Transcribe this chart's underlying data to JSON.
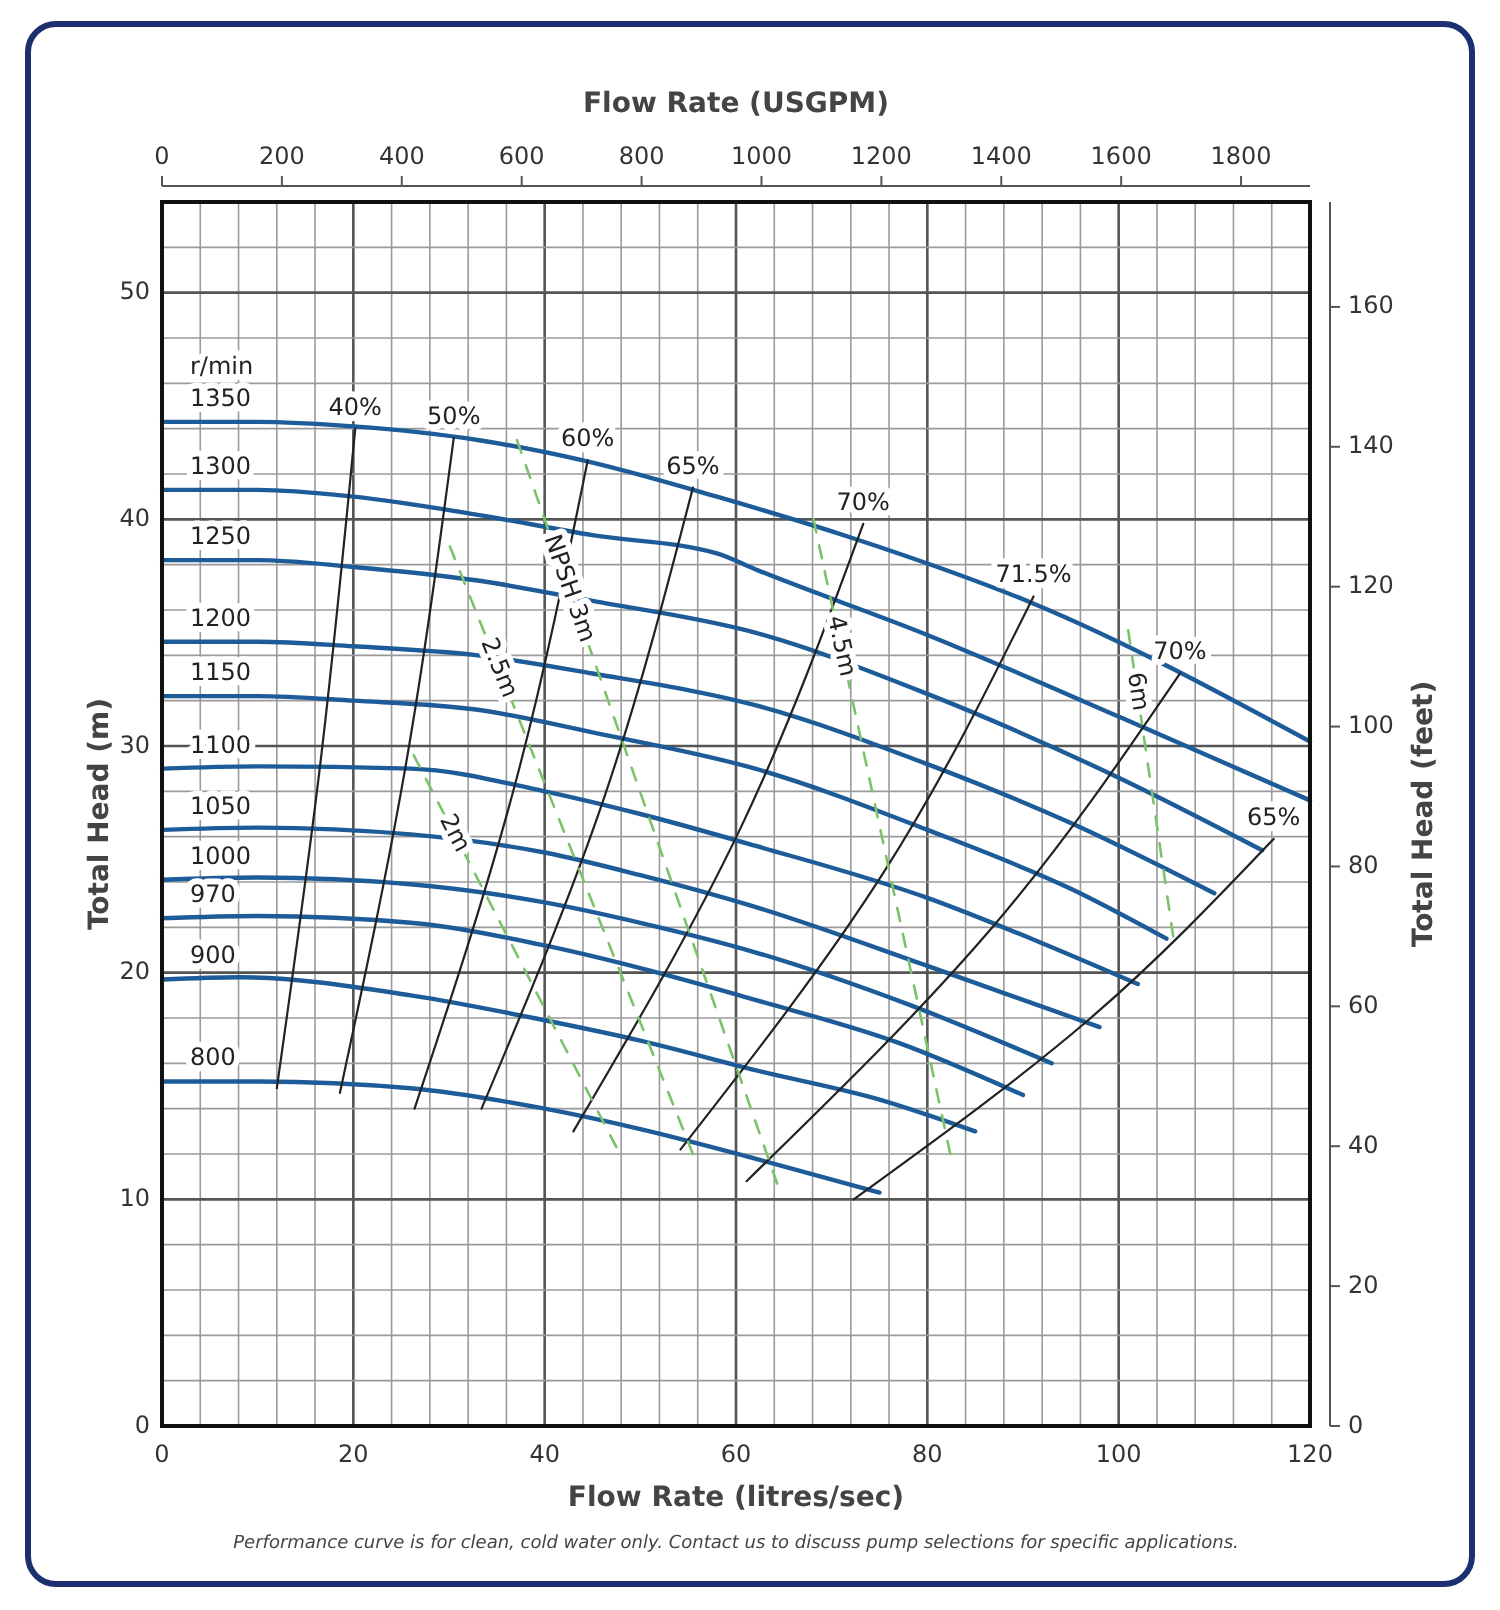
{
  "chart_data": {
    "type": "line",
    "xlabel": "Flow Rate (litres/sec)",
    "x2label": "Flow Rate (USGPM)",
    "ylabel": "Total Head (m)",
    "y2label": "Total Head (feet)",
    "xlim": [
      0,
      120
    ],
    "xticks": [
      0,
      20,
      40,
      60,
      80,
      100,
      120
    ],
    "x2lim": [
      0,
      1915
    ],
    "x2ticks": [
      0,
      200,
      400,
      600,
      800,
      1000,
      1200,
      1400,
      1600,
      1800
    ],
    "ylim": [
      0,
      54
    ],
    "yticks": [
      0,
      10,
      20,
      30,
      40,
      50
    ],
    "y2lim": [
      0,
      175
    ],
    "y2ticks": [
      0,
      20,
      40,
      60,
      80,
      100,
      120,
      140,
      160
    ],
    "grid": true,
    "series": [
      {
        "name": "1350",
        "color": "#1d5c99",
        "x": [
          0,
          10,
          20,
          33,
          44,
          58,
          72,
          91,
          120
        ],
        "values": [
          44.3,
          44.3,
          44.1,
          43.5,
          42.6,
          41.0,
          39.2,
          36.3,
          30.2
        ]
      },
      {
        "name": "1300",
        "color": "#1d5c99",
        "x": [
          0,
          10,
          20,
          33,
          45,
          58,
          62,
          80,
          100,
          120
        ],
        "values": [
          41.3,
          41.3,
          41.0,
          40.2,
          39.3,
          38.5,
          37.8,
          34.9,
          31.3,
          27.6
        ]
      },
      {
        "name": "1250",
        "color": "#1d5c99",
        "x": [
          0,
          10,
          20,
          33,
          45,
          62,
          80,
          100,
          115
        ],
        "values": [
          38.2,
          38.2,
          37.9,
          37.3,
          36.4,
          35.0,
          32.3,
          28.6,
          25.4
        ]
      },
      {
        "name": "1200",
        "color": "#1d5c99",
        "x": [
          0,
          10,
          20,
          33,
          45,
          62,
          80,
          95,
          110
        ],
        "values": [
          34.6,
          34.6,
          34.4,
          34.0,
          33.2,
          31.8,
          29.2,
          26.6,
          23.5
        ]
      },
      {
        "name": "1150",
        "color": "#1d5c99",
        "x": [
          0,
          10,
          20,
          33,
          45,
          62,
          80,
          95,
          105
        ],
        "values": [
          32.2,
          32.2,
          32.0,
          31.6,
          30.6,
          29.0,
          26.3,
          23.7,
          21.5
        ]
      },
      {
        "name": "1100",
        "color": "#1d5c99",
        "x": [
          0,
          10,
          26,
          40,
          50,
          62,
          80,
          92,
          102
        ],
        "values": [
          29.0,
          29.1,
          29.0,
          28.0,
          27.0,
          25.6,
          23.3,
          21.3,
          19.5
        ]
      },
      {
        "name": "1050",
        "color": "#1d5c99",
        "x": [
          0,
          10,
          26,
          40,
          50,
          62,
          80,
          98
        ],
        "values": [
          26.3,
          26.4,
          26.1,
          25.3,
          24.3,
          22.9,
          20.3,
          17.6
        ]
      },
      {
        "name": "1000",
        "color": "#1d5c99",
        "x": [
          0,
          10,
          26,
          40,
          50,
          62,
          78,
          93
        ],
        "values": [
          24.1,
          24.2,
          23.9,
          23.1,
          22.2,
          20.9,
          18.6,
          16.0
        ]
      },
      {
        "name": "970",
        "color": "#1d5c99",
        "x": [
          0,
          10,
          26,
          40,
          50,
          62,
          77,
          90
        ],
        "values": [
          22.4,
          22.5,
          22.2,
          21.2,
          20.2,
          18.8,
          16.9,
          14.6
        ]
      },
      {
        "name": "900",
        "color": "#1d5c99",
        "x": [
          0,
          8,
          26,
          40,
          50,
          62,
          75,
          85
        ],
        "values": [
          19.7,
          19.8,
          19.0,
          17.9,
          17.0,
          15.7,
          14.4,
          13.0
        ]
      },
      {
        "name": "800",
        "color": "#1d5c99",
        "x": [
          0,
          10,
          26,
          40,
          50,
          62,
          75
        ],
        "values": [
          15.2,
          15.2,
          14.9,
          14.0,
          13.1,
          11.8,
          10.3
        ]
      },
      {
        "name": "40%",
        "color": "#222222",
        "x": [
          12,
          16.6,
          20.2
        ],
        "values": [
          14.9,
          29.4,
          44.0
        ]
      },
      {
        "name": "50%",
        "color": "#222222",
        "x": [
          18.6,
          25.5,
          30.5
        ],
        "values": [
          14.7,
          29.2,
          43.6
        ]
      },
      {
        "name": "60%",
        "color": "#222222",
        "x": [
          26.4,
          36.9,
          44.5
        ],
        "values": [
          14.0,
          28.3,
          42.6
        ]
      },
      {
        "name": "65%",
        "color": "#222222",
        "x": [
          33.4,
          46.2,
          55.5
        ],
        "values": [
          14.0,
          27.7,
          41.4
        ]
      },
      {
        "name": "70%",
        "color": "#222222",
        "x": [
          43,
          60.5,
          73.3
        ],
        "values": [
          13.0,
          26.4,
          39.8
        ]
      },
      {
        "name": "71.5%",
        "color": "#222222",
        "x": [
          54.2,
          75.4,
          91.1
        ],
        "values": [
          12.2,
          24.4,
          36.6
        ]
      },
      {
        "name": "70%",
        "color": "#222222",
        "x": [
          61.1,
          86.8,
          106.4
        ],
        "values": [
          10.8,
          22.0,
          33.2
        ]
      },
      {
        "name": "65%",
        "color": "#222222",
        "x": [
          72.3,
          96.8,
          116.2
        ],
        "values": [
          10.0,
          17.9,
          25.9
        ]
      },
      {
        "name": "2m",
        "color": "#7cc26b",
        "line_style": "dashed",
        "x": [
          26.3,
          47.5
        ],
        "values": [
          29.6,
          12.3
        ]
      },
      {
        "name": "2.5m",
        "color": "#7cc26b",
        "line_style": "dashed",
        "x": [
          30.1,
          55.5
        ],
        "values": [
          38.8,
          12.0
        ]
      },
      {
        "name": "NPSH 3m",
        "color": "#7cc26b",
        "line_style": "dashed",
        "x": [
          37.1,
          64.3
        ],
        "values": [
          43.5,
          10.7
        ]
      },
      {
        "name": "4.5m",
        "color": "#7cc26b",
        "line_style": "dashed",
        "x": [
          68.1,
          82.4
        ],
        "values": [
          40.0,
          12.0
        ]
      },
      {
        "name": "6m",
        "color": "#7cc26b",
        "line_style": "dashed",
        "x": [
          101,
          105.7
        ],
        "values": [
          35.1,
          21.6
        ]
      }
    ],
    "annotations": [
      "r/min",
      "Performance curve is for clean, cold water only. Contact us to discuss pump selections for specific applications."
    ]
  }
}
